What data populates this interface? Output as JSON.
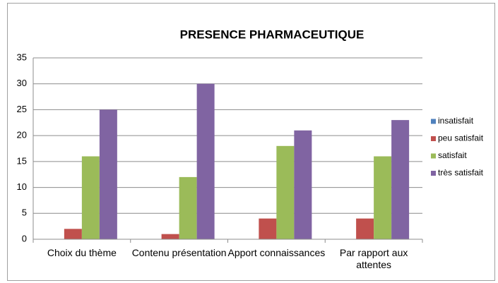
{
  "chart_data": {
    "type": "bar",
    "title": "PRESENCE PHARMACEUTIQUE",
    "categories": [
      "Choix du thème",
      "Contenu présentation",
      "Apport connaissances",
      "Par rapport aux attentes"
    ],
    "series": [
      {
        "name": "insatisfait",
        "color": "#4f81bd",
        "values": [
          0,
          0,
          0,
          0
        ]
      },
      {
        "name": "peu satisfait",
        "color": "#c0504d",
        "values": [
          2,
          1,
          4,
          4
        ]
      },
      {
        "name": "satisfait",
        "color": "#9bbb59",
        "values": [
          16,
          12,
          18,
          16
        ]
      },
      {
        "name": "très satisfait",
        "color": "#8064a2",
        "values": [
          25,
          30,
          21,
          23
        ]
      }
    ],
    "ylim": [
      0,
      35
    ],
    "yticks": [
      0,
      5,
      10,
      15,
      20,
      25,
      30,
      35
    ],
    "grid": true,
    "legend": "right"
  }
}
